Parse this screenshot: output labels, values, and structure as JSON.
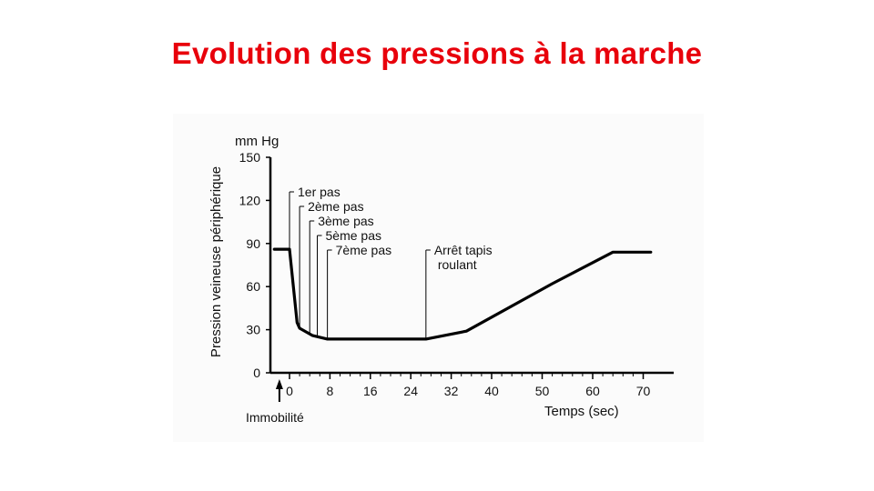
{
  "slide": {
    "title": "Evolution des pressions à la marche",
    "title_color": "#e8000b"
  },
  "chart_data": {
    "type": "line",
    "title": "",
    "ylabel": "Pression veineuse périphérique",
    "yunit": "mm Hg",
    "xlabel": "Temps (sec)",
    "ylim": [
      0,
      150
    ],
    "yticks": [
      0,
      30,
      60,
      90,
      120,
      150
    ],
    "xticks": [
      {
        "label": "0",
        "value": 0
      },
      {
        "label": "8",
        "value": 8
      },
      {
        "label": "16",
        "value": 16
      },
      {
        "label": "24",
        "value": 24
      },
      {
        "label": "32",
        "value": 32
      },
      {
        "label": "40",
        "value": 40
      },
      {
        "label": "50",
        "value": 50
      },
      {
        "label": "60",
        "value": 60
      },
      {
        "label": "70",
        "value": 70
      }
    ],
    "series": [
      {
        "x": [
          -3,
          0,
          1.5,
          2,
          4.5,
          7.5,
          27,
          35,
          52,
          64,
          71.5
        ],
        "y": [
          86,
          86,
          35,
          31,
          26,
          23.5,
          23.5,
          29,
          62,
          84,
          84
        ]
      }
    ],
    "annotations": [
      {
        "text": "1er pas",
        "x": 0
      },
      {
        "text": "2ème pas",
        "x": 2
      },
      {
        "text": "3ème pas",
        "x": 4
      },
      {
        "text": "5ème pas",
        "x": 5.5
      },
      {
        "text": "7ème pas",
        "x": 7.5
      },
      {
        "text": "Arrêt tapis",
        "text2": "roulant",
        "x": 27
      }
    ],
    "marker": {
      "text": "Immobilité",
      "x": -2
    },
    "line_color": "#000000",
    "grid": false
  }
}
